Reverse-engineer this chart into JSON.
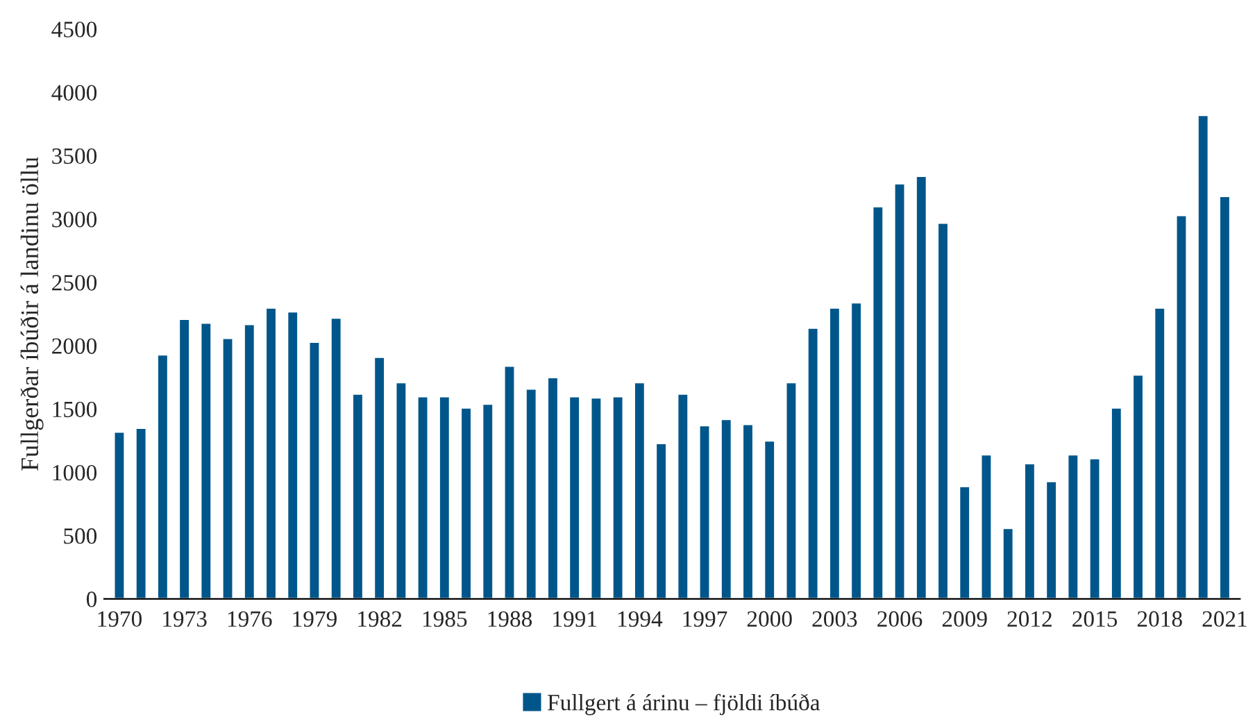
{
  "chart_data": {
    "type": "bar",
    "ylabel": "Fullgerðar íbúðir á landinu öllu",
    "categories": [
      "1970",
      null,
      null,
      "1973",
      null,
      null,
      "1976",
      null,
      null,
      "1979",
      null,
      null,
      "1982",
      null,
      null,
      "1985",
      null,
      null,
      "1988",
      null,
      null,
      "1991",
      null,
      null,
      "1994",
      null,
      null,
      "1997",
      null,
      null,
      "2000",
      null,
      null,
      "2003",
      null,
      null,
      "2006",
      null,
      null,
      "2009",
      null,
      null,
      "2012",
      null,
      null,
      "2015",
      null,
      null,
      "2018",
      null,
      null,
      "2021"
    ],
    "series": [
      {
        "name": "Fullgert á árinu – fjöldi íbúða",
        "color": "#00568a",
        "values": [
          1320,
          1350,
          1930,
          2210,
          2180,
          2060,
          2170,
          2300,
          2270,
          2030,
          2220,
          1620,
          1910,
          1710,
          1600,
          1600,
          1510,
          1540,
          1840,
          1660,
          1750,
          1600,
          1590,
          1600,
          1710,
          1230,
          1620,
          1370,
          1420,
          1380,
          1250,
          1710,
          2140,
          2300,
          2340,
          3100,
          3280,
          3340,
          2970,
          890,
          1140,
          560,
          1070,
          930,
          1140,
          1110,
          1510,
          1770,
          2300,
          3030,
          3820,
          3180
        ]
      }
    ],
    "ylim": [
      0,
      4500
    ],
    "yticks": [
      0,
      500,
      1000,
      1500,
      2000,
      2500,
      3000,
      3500,
      4000,
      4500
    ],
    "legend": "bottom"
  }
}
